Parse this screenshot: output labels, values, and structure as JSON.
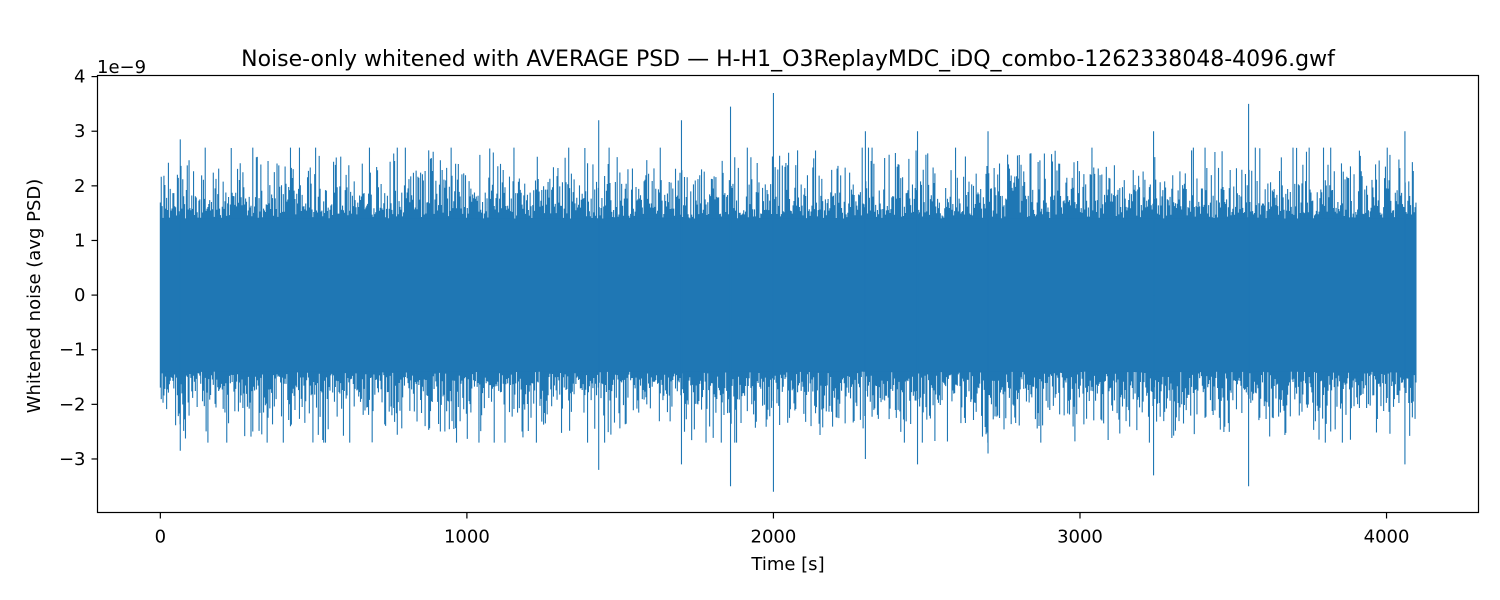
{
  "chart_data": {
    "type": "line",
    "title": "Noise-only whitened with AVERAGE PSD — H-H1_O3ReplayMDC_iDQ_combo-1262338048-4096.gwf",
    "xlabel": "Time [s]",
    "ylabel": "Whitened noise (avg PSD)",
    "y_offset_label": "1e−9",
    "xlim": [
      -205,
      4300
    ],
    "ylim": [
      -3.98,
      4.02
    ],
    "x_ticks": [
      0,
      1000,
      2000,
      3000,
      4000
    ],
    "x_tick_labels": [
      "0",
      "1000",
      "2000",
      "3000",
      "4000"
    ],
    "y_ticks": [
      -3,
      -2,
      -1,
      0,
      1,
      2,
      3,
      4
    ],
    "y_tick_labels": [
      "−3",
      "−2",
      "−1",
      "0",
      "1",
      "2",
      "3",
      "4"
    ],
    "grid": false,
    "color": "#1f77b4",
    "series": [
      {
        "x_range": [
          0,
          4096
        ],
        "samples": 1400,
        "seed": 1262338048,
        "core_amplitude_e9": [
          -1.4,
          1.4
        ],
        "extremes_e9": [
          {
            "x": 2000,
            "y": 3.7
          },
          {
            "x": 2000,
            "y": -3.6
          },
          {
            "x": 3550,
            "y": 3.5
          },
          {
            "x": 3550,
            "y": -3.5
          },
          {
            "x": 1860,
            "y": 3.45
          },
          {
            "x": 1860,
            "y": -3.5
          },
          {
            "x": 1430,
            "y": 3.2
          },
          {
            "x": 1430,
            "y": -3.2
          },
          {
            "x": 3240,
            "y": -3.3
          },
          {
            "x": 3240,
            "y": 3.0
          },
          {
            "x": 4060,
            "y": 3.0
          },
          {
            "x": 4060,
            "y": -3.1
          },
          {
            "x": 1700,
            "y": 3.2
          },
          {
            "x": 1700,
            "y": -3.1
          },
          {
            "x": 2300,
            "y": 3.0
          },
          {
            "x": 2300,
            "y": -3.0
          },
          {
            "x": 2700,
            "y": 3.0
          },
          {
            "x": 2700,
            "y": -2.9
          },
          {
            "x": 65,
            "y": 2.85
          },
          {
            "x": 65,
            "y": -2.85
          },
          {
            "x": 2470,
            "y": 3.0
          },
          {
            "x": 2470,
            "y": -3.1
          }
        ]
      }
    ]
  }
}
